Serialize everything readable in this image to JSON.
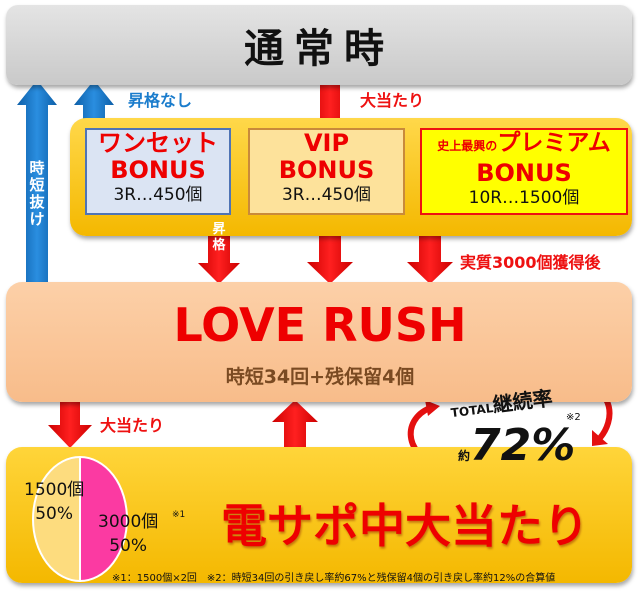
{
  "normal": {
    "title": "通常時"
  },
  "labels": {
    "no_upgrade": "昇格なし",
    "jackpot_top": "大当たり",
    "jitan_exit": "時短抜け",
    "upgrade": "昇格",
    "after_3000": "実質3000個獲得後",
    "jackpot_bottom": "大当たり"
  },
  "bonuses": [
    {
      "title_line1": "ワンセット",
      "title_line2": "BONUS",
      "detail": "3R…450個"
    },
    {
      "title_line1": "VIP",
      "title_line2": "BONUS",
      "detail": "3R…450個"
    },
    {
      "title_prefix": "史上最興の",
      "title_line1": "プレミアム",
      "title_line2": "BONUS",
      "detail": "10R…1500個"
    }
  ],
  "rush": {
    "title": "LOVE RUSH",
    "subtitle": "時短34回+残保留4個"
  },
  "continuation": {
    "label_prefix": "TOTAL",
    "label": "継続率",
    "approx": "約",
    "value": "72%",
    "note_mark": "※2"
  },
  "densapo": {
    "title": "電サポ中大当たり",
    "pie": [
      {
        "label": "1500個",
        "percent": "50%",
        "value": 50,
        "color": "#fddc7e"
      },
      {
        "label": "3000個",
        "percent": "50%",
        "value": 50,
        "color": "#fb3aa2",
        "note_mark": "※1"
      }
    ],
    "footnote": "※1：1500個×2回　※2：時短34回の引き戻し率約67%と残保留4個の引き戻し率約12%の合算値"
  },
  "colors": {
    "red": "#ee1111",
    "blue": "#1a7ccc",
    "gold": "#f4b800",
    "peach": "#f8bc8a",
    "gray": "#d0d0d0"
  }
}
